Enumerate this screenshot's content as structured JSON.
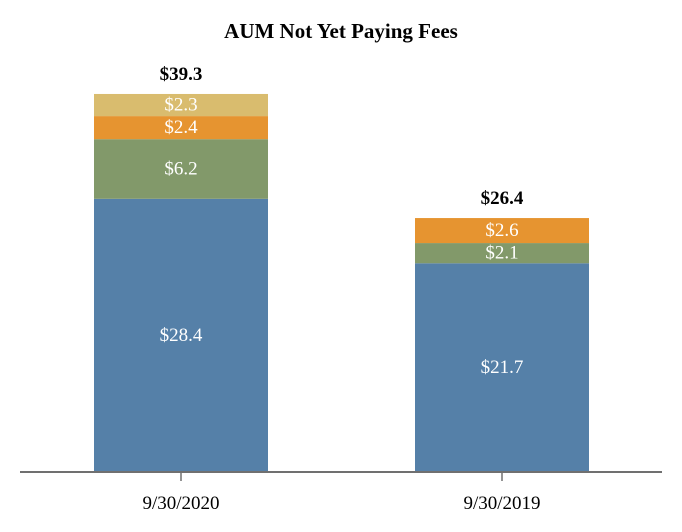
{
  "chart_data": {
    "type": "bar",
    "stacked": true,
    "title": "AUM Not Yet Paying Fees",
    "xlabel": "",
    "ylabel": "",
    "categories": [
      "9/30/2020",
      "9/30/2019"
    ],
    "series": [
      {
        "values": [
          28.4,
          21.7
        ],
        "labels": [
          "$28.4",
          "$21.7"
        ],
        "color": "#5580a8"
      },
      {
        "values": [
          6.2,
          2.1
        ],
        "labels": [
          "$6.2",
          "$2.1"
        ],
        "color": "#82996a"
      },
      {
        "values": [
          2.4,
          2.6
        ],
        "labels": [
          "$2.4",
          "$2.6"
        ],
        "color": "#e69430"
      },
      {
        "values": [
          2.3,
          0
        ],
        "labels": [
          "$2.3",
          ""
        ],
        "color": "#d9bc6e"
      }
    ],
    "totals": [
      "$39.3",
      "$26.4"
    ],
    "ylim": [
      0,
      42
    ],
    "grid": false,
    "legend": "none"
  }
}
